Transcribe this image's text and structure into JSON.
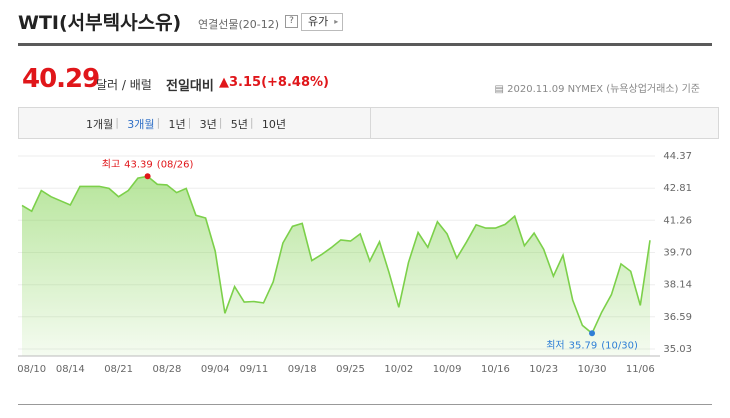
{
  "header": {
    "title": "WTI(서부텍사스유)",
    "subtitle": "연결선물(20-12)",
    "help": "?",
    "button": "유가"
  },
  "quote": {
    "price": 40.29,
    "unit": "달러 / 배럴",
    "change_label": "전일대비",
    "change": 3.15,
    "change_pct": "(+8.48%)",
    "date": "2020.11.09",
    "exchange": "NYMEX (뉴욕상업거래소)",
    "basis": "기준"
  },
  "tabs": {
    "items": [
      "1개월",
      "3개월",
      "1년",
      "3년",
      "5년",
      "10년"
    ],
    "selected": 1
  },
  "chart_data": {
    "type": "area",
    "categories": [
      null,
      "08/10",
      null,
      null,
      null,
      "08/14",
      null,
      null,
      null,
      null,
      "08/21",
      null,
      null,
      null,
      null,
      "08/28",
      null,
      null,
      null,
      null,
      "09/04",
      null,
      null,
      null,
      "09/11",
      null,
      null,
      null,
      null,
      "09/18",
      null,
      null,
      null,
      null,
      "09/25",
      null,
      null,
      null,
      null,
      "10/02",
      null,
      null,
      null,
      null,
      "10/09",
      null,
      null,
      null,
      null,
      "10/16",
      null,
      null,
      null,
      null,
      "10/23",
      null,
      null,
      null,
      null,
      "10/30",
      null,
      null,
      null,
      null,
      "11/06",
      null
    ],
    "series": [
      {
        "name": "WTI",
        "color": "#7cd04a",
        "values": [
          41.98,
          41.7,
          42.7,
          42.4,
          42.2,
          42.0,
          42.9,
          42.9,
          42.9,
          42.8,
          42.4,
          42.7,
          43.3,
          43.39,
          43.0,
          42.97,
          42.6,
          42.8,
          41.5,
          41.37,
          39.77,
          36.76,
          38.05,
          37.3,
          37.33,
          37.26,
          38.28,
          40.16,
          40.97,
          41.11,
          39.31,
          39.6,
          39.93,
          40.31,
          40.25,
          40.6,
          39.29,
          40.22,
          38.72,
          37.05,
          39.22,
          40.67,
          39.95,
          41.19,
          40.6,
          39.43,
          40.2,
          41.04,
          40.88,
          40.88,
          41.06,
          41.46,
          40.03,
          40.64,
          39.85,
          38.56,
          39.57,
          37.39,
          36.17,
          35.79,
          36.81,
          37.66,
          39.15,
          38.79,
          37.14,
          40.29
        ]
      }
    ],
    "ylim": [
      35.03,
      44.37
    ],
    "yticks": [
      35.03,
      36.59,
      38.14,
      {
        "value": 39.7,
        "label": "39.70"
      },
      41.26,
      42.81,
      44.37
    ],
    "grid": true,
    "annotations": {
      "max_label": "최고",
      "max_date": "(08/26)",
      "max_color": "#e0161a",
      "min_label": "최저",
      "min_date": "(10/30)",
      "min_color": "#2f7fd6"
    }
  }
}
